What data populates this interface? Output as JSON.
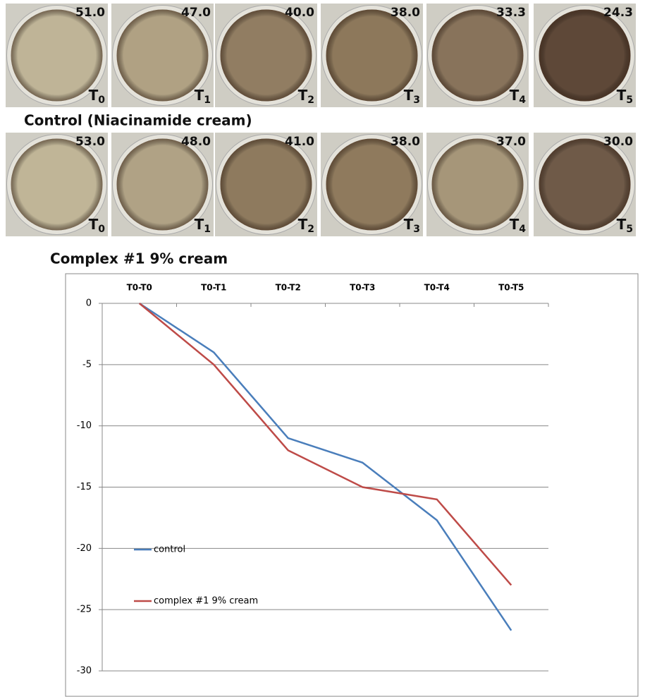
{
  "rows": [
    {
      "caption": "Control (Niacinamide cream)",
      "images": [
        {
          "value": "51.0",
          "time": {
            "letter": "T",
            "sub": "0"
          }
        },
        {
          "value": "47.0",
          "time": {
            "letter": "T",
            "sub": "1"
          }
        },
        {
          "value": "40.0",
          "time": {
            "letter": "T",
            "sub": "2"
          }
        },
        {
          "value": "38.0",
          "time": {
            "letter": "T",
            "sub": "3"
          }
        },
        {
          "value": "33.3",
          "time": {
            "letter": "T",
            "sub": "4"
          }
        },
        {
          "value": "24.3",
          "time": {
            "letter": "T",
            "sub": "5"
          }
        }
      ]
    },
    {
      "caption": "Complex #1 9% cream",
      "images": [
        {
          "value": "53.0",
          "time": {
            "letter": "T",
            "sub": "0"
          }
        },
        {
          "value": "48.0",
          "time": {
            "letter": "T",
            "sub": "1"
          }
        },
        {
          "value": "41.0",
          "time": {
            "letter": "T",
            "sub": "2"
          }
        },
        {
          "value": "38.0",
          "time": {
            "letter": "T",
            "sub": "3"
          }
        },
        {
          "value": "37.0",
          "time": {
            "letter": "T",
            "sub": "4"
          }
        },
        {
          "value": "30.0",
          "time": {
            "letter": "T",
            "sub": "5"
          }
        }
      ]
    }
  ],
  "chart_data": {
    "type": "line",
    "categories": [
      "T0-T0",
      "T0-T1",
      "T0-T2",
      "T0-T3",
      "T0-T4",
      "T0-T5"
    ],
    "series": [
      {
        "name": "control",
        "color": "#4a7ebb",
        "values": [
          0,
          -4,
          -11,
          -13,
          -17.7,
          -26.7
        ]
      },
      {
        "name": "complex #1 9% cream",
        "color": "#be4b48",
        "values": [
          0,
          -5,
          -12,
          -15,
          -16,
          -23
        ]
      }
    ],
    "ylim": [
      -30,
      0
    ],
    "yticks": [
      0,
      -5,
      -10,
      -15,
      -20,
      -25,
      -30
    ],
    "grid": true,
    "legend": "left"
  }
}
